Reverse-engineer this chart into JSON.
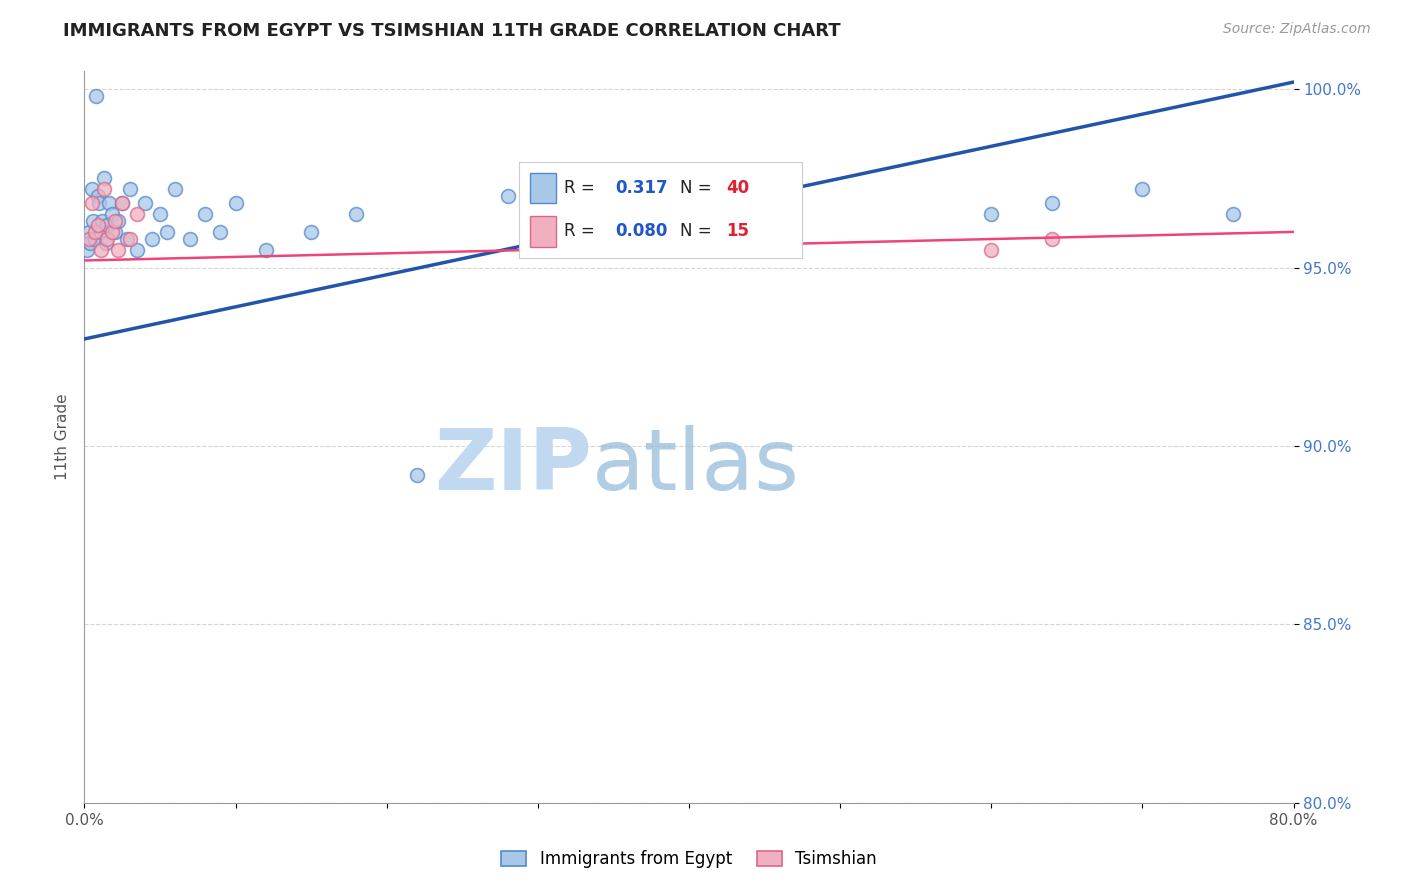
{
  "title": "IMMIGRANTS FROM EGYPT VS TSIMSHIAN 11TH GRADE CORRELATION CHART",
  "source_text": "Source: ZipAtlas.com",
  "ylabel": "11th Grade",
  "xlim": [
    0.0,
    0.8
  ],
  "ylim": [
    0.8,
    1.005
  ],
  "ytick_values": [
    0.8,
    0.85,
    0.9,
    0.95,
    1.0
  ],
  "xtick_values": [
    0.0,
    0.1,
    0.2,
    0.3,
    0.4,
    0.5,
    0.6,
    0.7,
    0.8
  ],
  "xtick_labels": [
    "0.0%",
    "",
    "",
    "",
    "",
    "",
    "",
    "",
    "80.0%"
  ],
  "egypt_x": [
    0.002,
    0.003,
    0.004,
    0.005,
    0.006,
    0.007,
    0.008,
    0.009,
    0.01,
    0.011,
    0.012,
    0.013,
    0.014,
    0.015,
    0.016,
    0.018,
    0.02,
    0.022,
    0.025,
    0.028,
    0.03,
    0.035,
    0.04,
    0.045,
    0.05,
    0.055,
    0.06,
    0.07,
    0.08,
    0.09,
    0.1,
    0.12,
    0.15,
    0.18,
    0.22,
    0.28,
    0.6,
    0.64,
    0.7,
    0.76
  ],
  "egypt_y": [
    0.955,
    0.96,
    0.957,
    0.972,
    0.963,
    0.958,
    0.998,
    0.97,
    0.968,
    0.96,
    0.963,
    0.975,
    0.957,
    0.962,
    0.968,
    0.965,
    0.96,
    0.963,
    0.968,
    0.958,
    0.972,
    0.955,
    0.968,
    0.958,
    0.965,
    0.96,
    0.972,
    0.958,
    0.965,
    0.96,
    0.968,
    0.955,
    0.96,
    0.965,
    0.892,
    0.97,
    0.965,
    0.968,
    0.972,
    0.965
  ],
  "tsimshian_x": [
    0.003,
    0.005,
    0.007,
    0.009,
    0.011,
    0.013,
    0.015,
    0.018,
    0.02,
    0.022,
    0.025,
    0.03,
    0.035,
    0.6,
    0.64
  ],
  "tsimshian_y": [
    0.958,
    0.968,
    0.96,
    0.962,
    0.955,
    0.972,
    0.958,
    0.96,
    0.963,
    0.955,
    0.968,
    0.958,
    0.965,
    0.955,
    0.958
  ],
  "egypt_color": "#a8c8e8",
  "tsimshian_color": "#f0b0c0",
  "egypt_edge_color": "#5588cc",
  "tsimshian_edge_color": "#dd6688",
  "trend_egypt_color": "#2255aa",
  "trend_tsimshian_color": "#ee4477",
  "R_egypt": 0.317,
  "N_egypt": 40,
  "R_tsimshian": 0.08,
  "N_tsimshian": 15,
  "legend_egypt_label": "Immigrants from Egypt",
  "legend_tsimshian_label": "Tsimshian",
  "marker_size": 100,
  "grid_color": "#bbbbbb",
  "grid_alpha": 0.6,
  "watermark_zip_color": "#c0d8f0",
  "watermark_atlas_color": "#90b8d8",
  "background_color": "#ffffff",
  "trend_egypt_x0": 0.0,
  "trend_egypt_y0": 0.93,
  "trend_egypt_x1": 0.8,
  "trend_egypt_y1": 1.002,
  "trend_tsim_x0": 0.0,
  "trend_tsim_y0": 0.952,
  "trend_tsim_x1": 0.8,
  "trend_tsim_y1": 0.96
}
